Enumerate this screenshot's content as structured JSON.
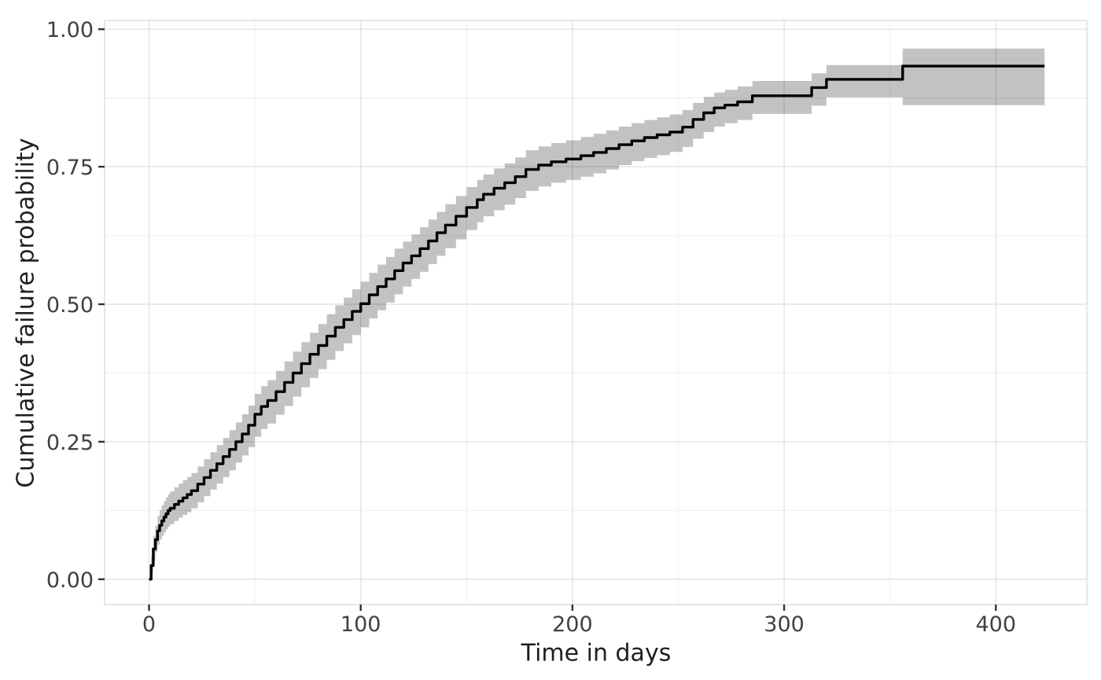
{
  "chart_data": {
    "type": "line",
    "subtype": "kaplan-meier-cumulative-incidence-step-curve-with-confidence-band",
    "title": "",
    "xlabel": "Time in days",
    "ylabel": "Cumulative failure probability",
    "legend": false,
    "grid": true,
    "xlim": [
      -21,
      443
    ],
    "ylim": [
      -0.046,
      1.016
    ],
    "x_ticks": [
      {
        "value": 0,
        "label": "0"
      },
      {
        "value": 100,
        "label": "100"
      },
      {
        "value": 200,
        "label": "200"
      },
      {
        "value": 300,
        "label": "300"
      },
      {
        "value": 400,
        "label": "400"
      }
    ],
    "y_ticks": [
      {
        "value": 0.0,
        "label": "0.00"
      },
      {
        "value": 0.25,
        "label": "0.25"
      },
      {
        "value": 0.5,
        "label": "0.50"
      },
      {
        "value": 0.75,
        "label": "0.75"
      },
      {
        "value": 1.0,
        "label": "1.00"
      }
    ],
    "x_minor": [
      50,
      150,
      250,
      350
    ],
    "y_minor": [
      0.125,
      0.375,
      0.625,
      0.875
    ],
    "colors": {
      "line": "#000000",
      "ribbon": "rgba(0,0,0,0.24)",
      "grid_major": "#e3e3e3",
      "grid_minor": "#f1f1f1",
      "panel_border": "#dcdcdc",
      "tick_mark": "#333333",
      "tick_text": "#404040",
      "axis_title_text": "#1f1f1f",
      "background": "#ffffff"
    },
    "points_columns": [
      "time_days",
      "estimate",
      "ci_lower",
      "ci_upper"
    ],
    "series": [
      {
        "name": "Cumulative failure probability",
        "points": [
          [
            0,
            0.0,
            0.0,
            0.0
          ],
          [
            1,
            0.025,
            0.012,
            0.042
          ],
          [
            2,
            0.055,
            0.035,
            0.078
          ],
          [
            3,
            0.072,
            0.049,
            0.097
          ],
          [
            4,
            0.088,
            0.063,
            0.115
          ],
          [
            5,
            0.098,
            0.072,
            0.126
          ],
          [
            6,
            0.106,
            0.079,
            0.135
          ],
          [
            7,
            0.113,
            0.085,
            0.142
          ],
          [
            8,
            0.119,
            0.091,
            0.149
          ],
          [
            9,
            0.125,
            0.096,
            0.155
          ],
          [
            10,
            0.129,
            0.1,
            0.16
          ],
          [
            12,
            0.136,
            0.106,
            0.167
          ],
          [
            14,
            0.142,
            0.112,
            0.174
          ],
          [
            16,
            0.148,
            0.117,
            0.18
          ],
          [
            18,
            0.154,
            0.122,
            0.186
          ],
          [
            20,
            0.161,
            0.129,
            0.193
          ],
          [
            23,
            0.173,
            0.14,
            0.205
          ],
          [
            26,
            0.185,
            0.151,
            0.218
          ],
          [
            29,
            0.198,
            0.163,
            0.231
          ],
          [
            32,
            0.21,
            0.174,
            0.244
          ],
          [
            35,
            0.223,
            0.186,
            0.257
          ],
          [
            38,
            0.236,
            0.198,
            0.271
          ],
          [
            41,
            0.25,
            0.212,
            0.285
          ],
          [
            44,
            0.264,
            0.225,
            0.3
          ],
          [
            47,
            0.28,
            0.24,
            0.316
          ],
          [
            50,
            0.3,
            0.259,
            0.337
          ],
          [
            53,
            0.314,
            0.273,
            0.351
          ],
          [
            56,
            0.325,
            0.283,
            0.362
          ],
          [
            60,
            0.341,
            0.299,
            0.379
          ],
          [
            64,
            0.358,
            0.315,
            0.396
          ],
          [
            68,
            0.375,
            0.332,
            0.414
          ],
          [
            72,
            0.392,
            0.349,
            0.431
          ],
          [
            76,
            0.409,
            0.366,
            0.448
          ],
          [
            80,
            0.425,
            0.382,
            0.464
          ],
          [
            84,
            0.442,
            0.399,
            0.482
          ],
          [
            88,
            0.458,
            0.415,
            0.498
          ],
          [
            92,
            0.472,
            0.429,
            0.512
          ],
          [
            96,
            0.487,
            0.444,
            0.527
          ],
          [
            100,
            0.501,
            0.458,
            0.541
          ],
          [
            104,
            0.517,
            0.474,
            0.557
          ],
          [
            108,
            0.532,
            0.489,
            0.572
          ],
          [
            112,
            0.546,
            0.503,
            0.586
          ],
          [
            116,
            0.561,
            0.518,
            0.601
          ],
          [
            120,
            0.575,
            0.532,
            0.614
          ],
          [
            124,
            0.588,
            0.546,
            0.627
          ],
          [
            128,
            0.601,
            0.559,
            0.64
          ],
          [
            132,
            0.615,
            0.573,
            0.654
          ],
          [
            136,
            0.63,
            0.588,
            0.668
          ],
          [
            140,
            0.644,
            0.602,
            0.682
          ],
          [
            145,
            0.66,
            0.618,
            0.697
          ],
          [
            150,
            0.676,
            0.635,
            0.713
          ],
          [
            155,
            0.69,
            0.649,
            0.726
          ],
          [
            158,
            0.7,
            0.66,
            0.736
          ],
          [
            163,
            0.711,
            0.671,
            0.747
          ],
          [
            168,
            0.721,
            0.681,
            0.756
          ],
          [
            173,
            0.732,
            0.693,
            0.767
          ],
          [
            178,
            0.745,
            0.706,
            0.78
          ],
          [
            184,
            0.753,
            0.714,
            0.787
          ],
          [
            190,
            0.759,
            0.721,
            0.793
          ],
          [
            197,
            0.764,
            0.726,
            0.798
          ],
          [
            204,
            0.77,
            0.732,
            0.804
          ],
          [
            210,
            0.776,
            0.738,
            0.81
          ],
          [
            216,
            0.783,
            0.745,
            0.816
          ],
          [
            222,
            0.79,
            0.753,
            0.823
          ],
          [
            228,
            0.797,
            0.76,
            0.829
          ],
          [
            234,
            0.803,
            0.766,
            0.835
          ],
          [
            240,
            0.808,
            0.771,
            0.84
          ],
          [
            246,
            0.813,
            0.777,
            0.845
          ],
          [
            252,
            0.822,
            0.786,
            0.853
          ],
          [
            257,
            0.836,
            0.801,
            0.866
          ],
          [
            262,
            0.848,
            0.813,
            0.877
          ],
          [
            267,
            0.857,
            0.823,
            0.885
          ],
          [
            272,
            0.862,
            0.829,
            0.89
          ],
          [
            278,
            0.868,
            0.835,
            0.896
          ],
          [
            285,
            0.879,
            0.846,
            0.906
          ],
          [
            313,
            0.894,
            0.861,
            0.92
          ],
          [
            320,
            0.909,
            0.876,
            0.935
          ],
          [
            356,
            0.933,
            0.862,
            0.965
          ],
          [
            423,
            0.933,
            0.862,
            0.965
          ]
        ]
      }
    ]
  }
}
